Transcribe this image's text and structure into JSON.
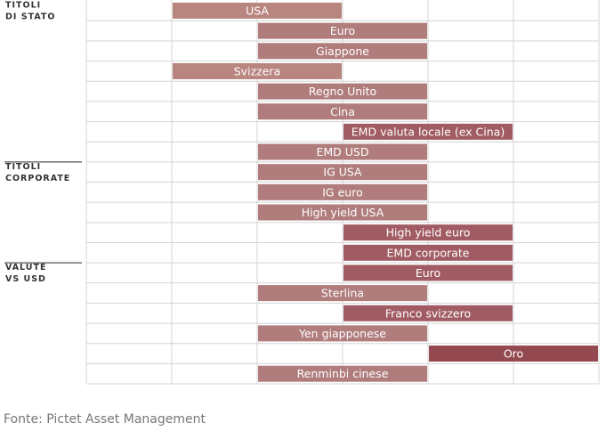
{
  "chart_data": {
    "type": "range-bar",
    "source": "Fonte: Pictet Asset Management",
    "xlim": [
      0,
      6
    ],
    "xticks": [
      0,
      1,
      2,
      3,
      4,
      5,
      6
    ],
    "groups": [
      {
        "lines": [
          "TITOLI",
          "DI STATO"
        ],
        "rows": [
          0,
          7
        ]
      },
      {
        "lines": [
          "TITOLI",
          "CORPORATE"
        ],
        "rows": [
          8,
          12
        ]
      },
      {
        "lines": [
          "VALUTE",
          "VS USD"
        ],
        "rows": [
          13,
          18
        ]
      }
    ],
    "bars": [
      {
        "label": "USA",
        "range": [
          1,
          3
        ],
        "color": "#b9857f"
      },
      {
        "label": "Euro",
        "range": [
          2,
          4
        ],
        "color": "#b07c7c"
      },
      {
        "label": "Giappone",
        "range": [
          2,
          4
        ],
        "color": "#b07c7c"
      },
      {
        "label": "Svizzera",
        "range": [
          1,
          3
        ],
        "color": "#b9857f"
      },
      {
        "label": "Regno Unito",
        "range": [
          2,
          4
        ],
        "color": "#b07c7c"
      },
      {
        "label": "Cina",
        "range": [
          2,
          4
        ],
        "color": "#b07c7c"
      },
      {
        "label": "EMD valuta locale (ex Cina)",
        "range": [
          3,
          5
        ],
        "color": "#a05c62"
      },
      {
        "label": "EMD USD",
        "range": [
          2,
          4
        ],
        "color": "#b07c7c"
      },
      {
        "label": "IG USA",
        "range": [
          2,
          4
        ],
        "color": "#b07c7c"
      },
      {
        "label": "IG euro",
        "range": [
          2,
          4
        ],
        "color": "#b07c7c"
      },
      {
        "label": "High yield USA",
        "range": [
          2,
          4
        ],
        "color": "#b07c7c"
      },
      {
        "label": "High yield euro",
        "range": [
          3,
          5
        ],
        "color": "#a05c62"
      },
      {
        "label": "EMD corporate",
        "range": [
          3,
          5
        ],
        "color": "#a05c62"
      },
      {
        "label": "Euro",
        "range": [
          3,
          5
        ],
        "color": "#a05c62"
      },
      {
        "label": "Sterlina",
        "range": [
          2,
          4
        ],
        "color": "#b07c7c"
      },
      {
        "label": "Franco svizzero",
        "range": [
          3,
          5
        ],
        "color": "#a05c62"
      },
      {
        "label": "Yen giapponese",
        "range": [
          2,
          4
        ],
        "color": "#b07c7c"
      },
      {
        "label": "Oro",
        "range": [
          4,
          6
        ],
        "color": "#93494f"
      },
      {
        "label": "Renminbi cinese",
        "range": [
          2,
          4
        ],
        "color": "#b07c7c"
      }
    ]
  }
}
